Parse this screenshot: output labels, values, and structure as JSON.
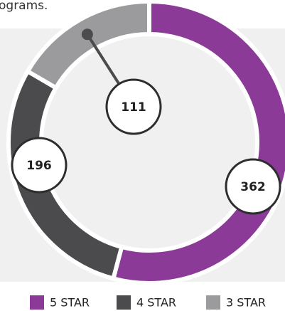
{
  "intro_text": "ograms.",
  "chart_data": {
    "type": "donut",
    "categories": [
      "5 STAR",
      "4 STAR",
      "3 STAR"
    ],
    "values": [
      362,
      196,
      111
    ],
    "colors": [
      "#8b3a97",
      "#4b4b4d",
      "#9b9b9d"
    ],
    "legend": "bottom-right"
  }
}
